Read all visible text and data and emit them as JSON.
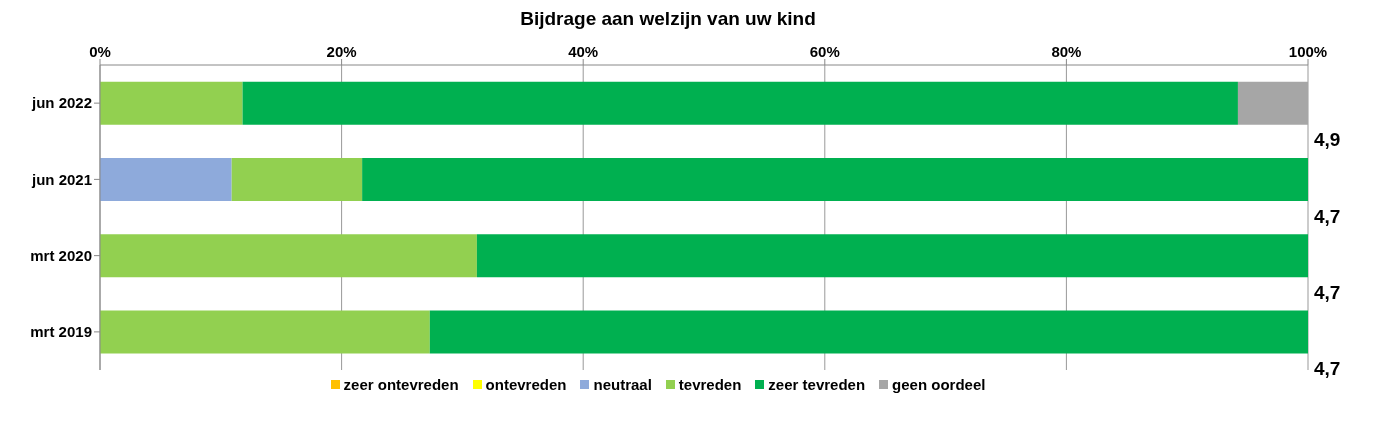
{
  "chart_data": {
    "type": "bar",
    "orientation": "horizontal",
    "stacked": true,
    "title": "Bijdrage aan welzijn van uw kind",
    "categories": [
      "jun 2022",
      "jun 2021",
      "mrt 2020",
      "mrt 2019"
    ],
    "series": [
      {
        "name": "zeer ontevreden",
        "color": "#ffc000",
        "values": [
          0,
          0,
          0,
          0
        ]
      },
      {
        "name": "ontevreden",
        "color": "#ffff00",
        "values": [
          0,
          0,
          0,
          0
        ]
      },
      {
        "name": "neutraal",
        "color": "#8eaadb",
        "values": [
          0,
          10.9,
          0,
          0
        ]
      },
      {
        "name": "tevreden",
        "color": "#92d050",
        "values": [
          11.8,
          10.8,
          31.2,
          27.3
        ]
      },
      {
        "name": "zeer tevreden",
        "color": "#00b050",
        "values": [
          82.4,
          78.3,
          68.8,
          72.7
        ]
      },
      {
        "name": "geen oordeel",
        "color": "#a6a6a6",
        "values": [
          5.8,
          0,
          0,
          0
        ]
      }
    ],
    "xlim": [
      0,
      100
    ],
    "xticks": [
      {
        "value": 0,
        "label": "0%"
      },
      {
        "value": 20,
        "label": "20%"
      },
      {
        "value": 40,
        "label": "40%"
      },
      {
        "value": 60,
        "label": "60%"
      },
      {
        "value": 80,
        "label": "80%"
      },
      {
        "value": 100,
        "label": "100%"
      }
    ],
    "grid": "x",
    "legend": "bottom",
    "annotations": [
      "4,9",
      "4,7",
      "4,7",
      "4,7"
    ]
  }
}
